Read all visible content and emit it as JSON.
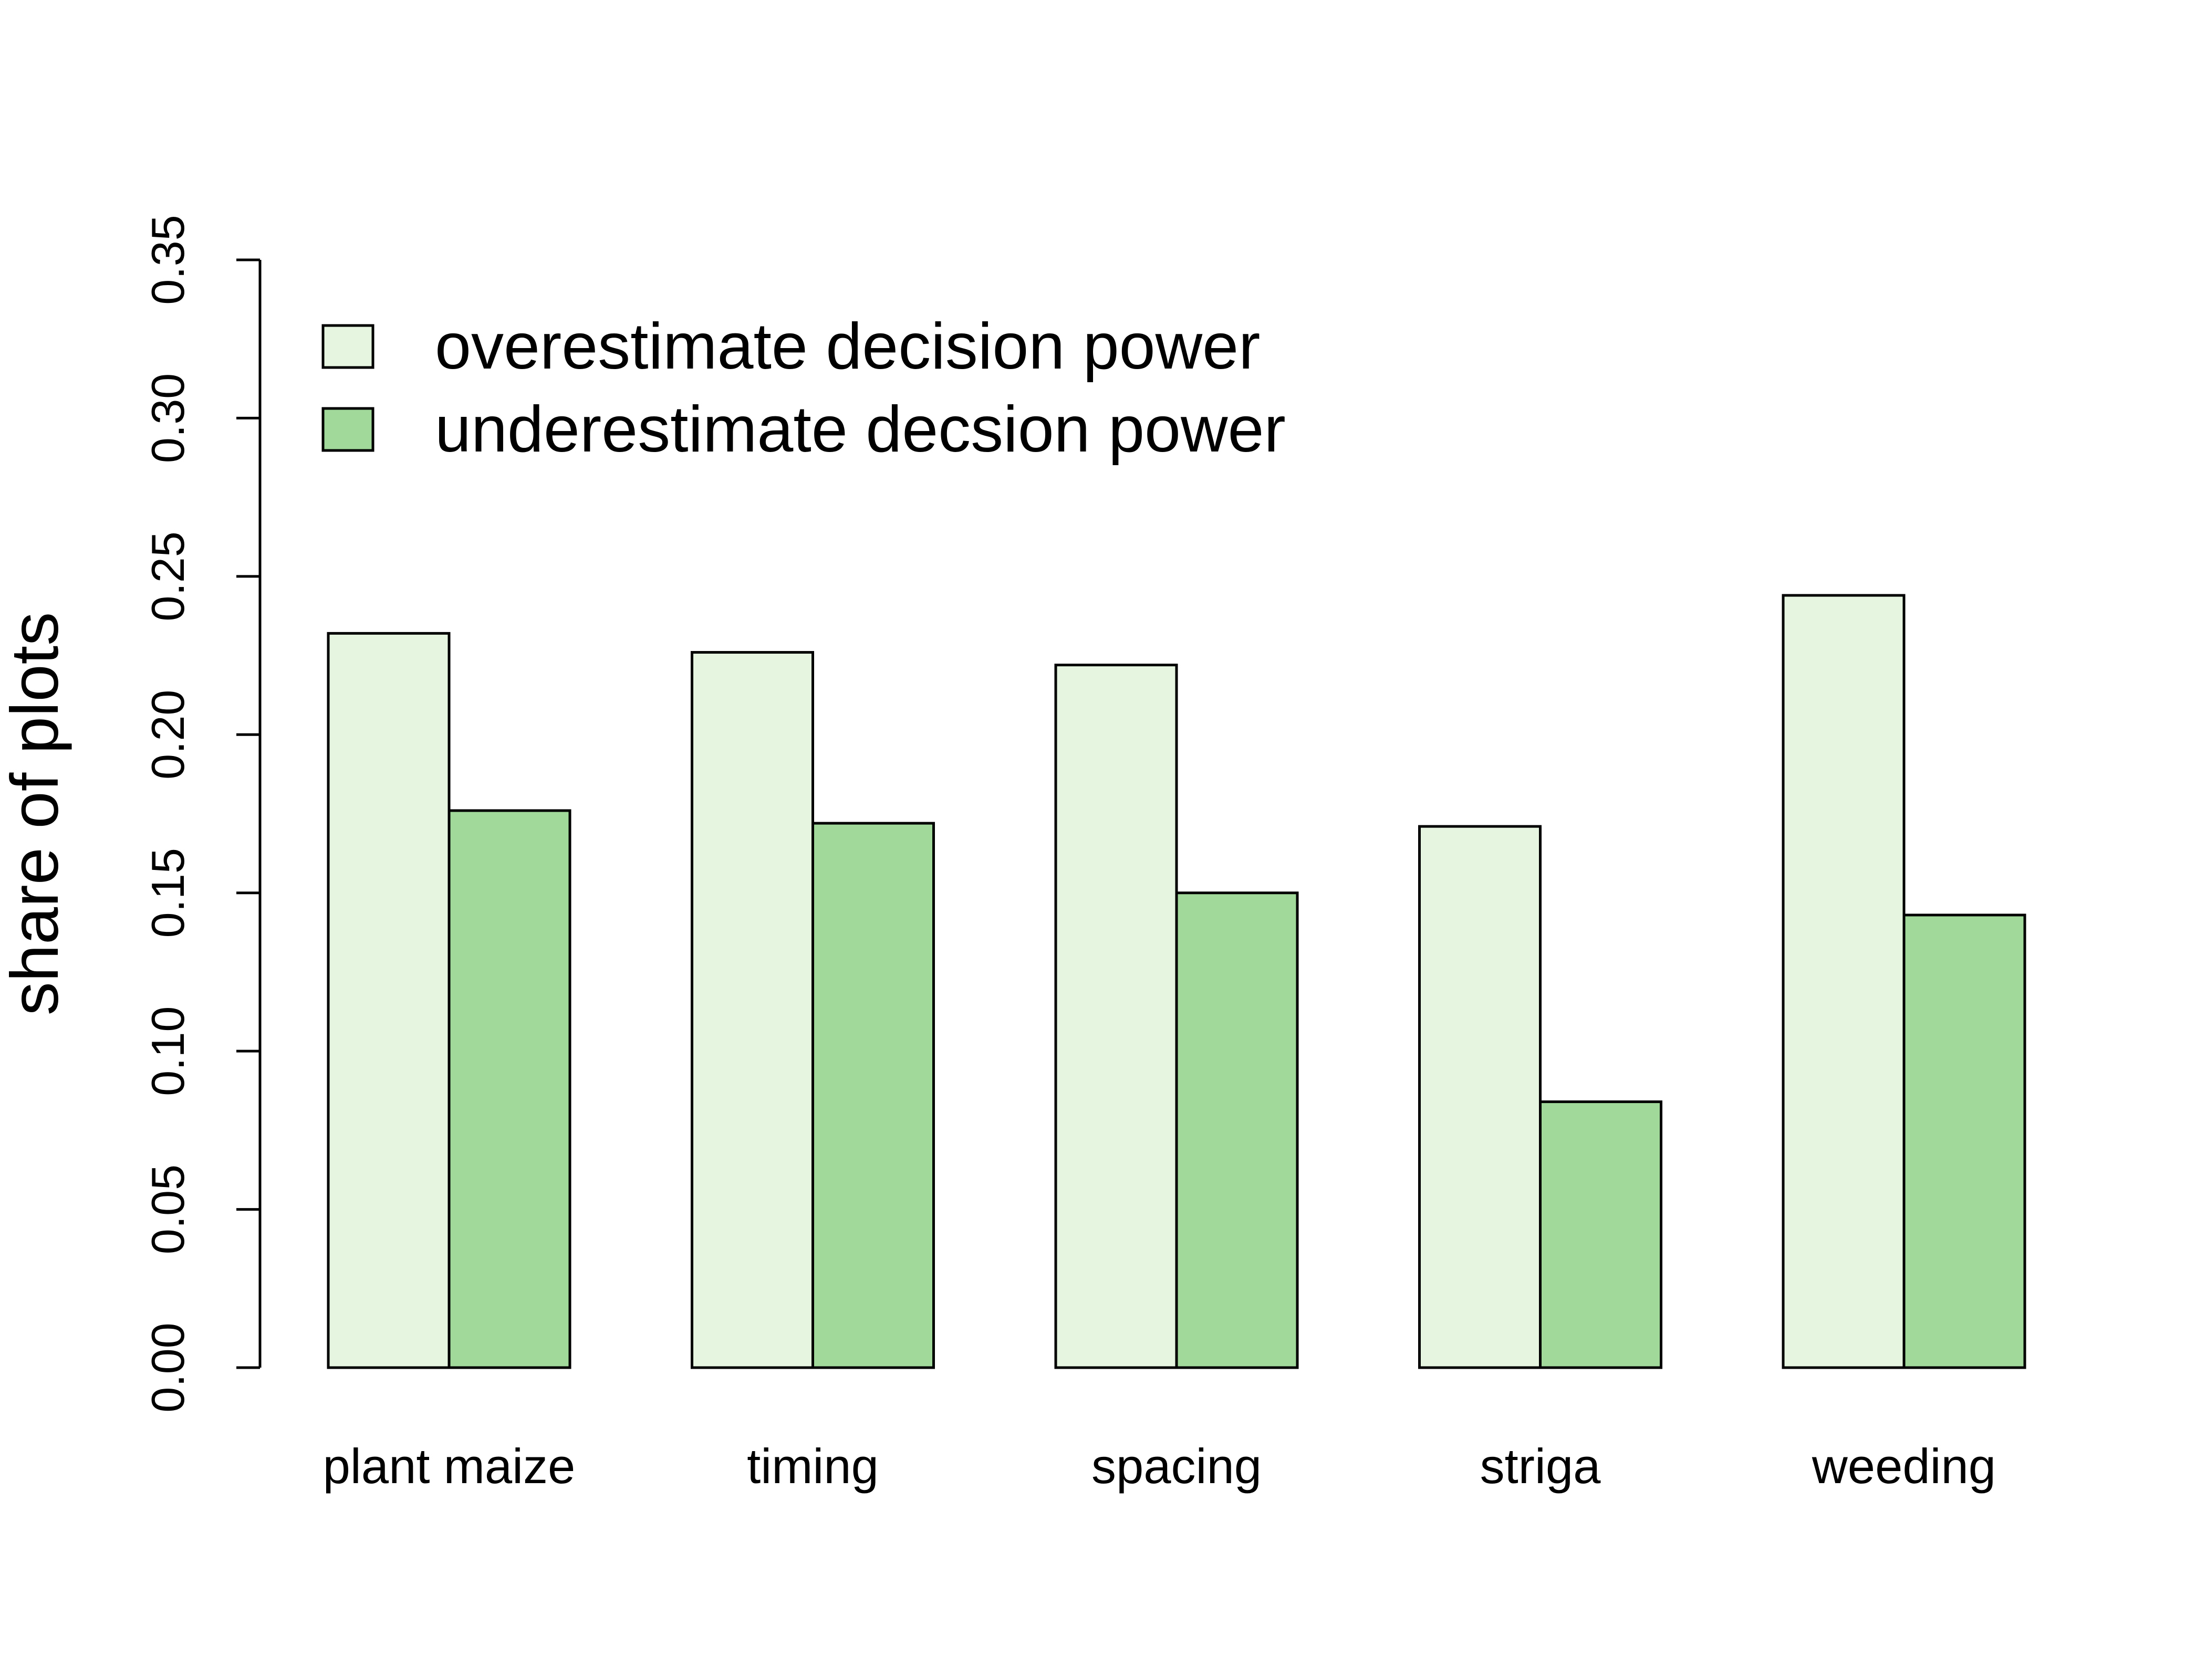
{
  "chart_data": {
    "type": "bar",
    "title": "",
    "xlabel": "",
    "ylabel": "share of plots",
    "ylim": [
      0,
      0.35
    ],
    "yticks": [
      "0.00",
      "0.05",
      "0.10",
      "0.15",
      "0.20",
      "0.25",
      "0.30",
      "0.35"
    ],
    "grid": false,
    "legend_position": "top-left",
    "categories": [
      "plant maize",
      "timing",
      "spacing",
      "striga",
      "weeding"
    ],
    "series": [
      {
        "name": "overestimate decision power",
        "color": "#e5f5e0",
        "values": [
          0.232,
          0.226,
          0.222,
          0.171,
          0.244
        ]
      },
      {
        "name": "underestimate decsion power",
        "color": "#a1d99b",
        "values": [
          0.176,
          0.172,
          0.15,
          0.084,
          0.143
        ]
      }
    ]
  }
}
